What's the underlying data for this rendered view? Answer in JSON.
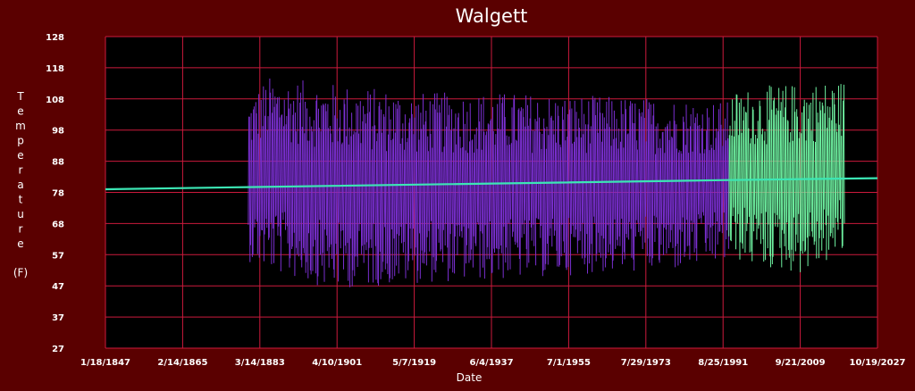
{
  "chart_data": {
    "type": "line",
    "title": "Walgett",
    "xlabel": "Date",
    "ylabel": "Temperature",
    "ylabel_unit": "(F)",
    "x_tick_labels": [
      "1/18/1847",
      "2/14/1865",
      "3/14/1883",
      "4/10/1901",
      "5/7/1919",
      "6/4/1937",
      "7/1/1955",
      "7/29/1973",
      "8/25/1991",
      "9/21/2009",
      "10/19/2027"
    ],
    "y_tick_labels": [
      "27",
      "37",
      "47",
      "57",
      "68",
      "78",
      "88",
      "98",
      "108",
      "118",
      "128"
    ],
    "xlim": [
      1847.05,
      2027.8
    ],
    "ylim": [
      27,
      128
    ],
    "grid": true,
    "series": [
      {
        "color": "#7a2fd0",
        "x_range": [
          1880.5,
          1993.0
        ],
        "envelope_high": [
          [
            1880.5,
            108
          ],
          [
            1885,
            115
          ],
          [
            1900,
            113
          ],
          [
            1920,
            110
          ],
          [
            1940,
            110
          ],
          [
            1960,
            109
          ],
          [
            1980,
            108
          ],
          [
            1993,
            107
          ]
        ],
        "envelope_low": [
          [
            1880.5,
            55
          ],
          [
            1885,
            52
          ],
          [
            1900,
            46
          ],
          [
            1920,
            48
          ],
          [
            1940,
            49
          ],
          [
            1960,
            51
          ],
          [
            1980,
            52
          ],
          [
            1993,
            55
          ]
        ]
      },
      {
        "color": "#6ef0a0",
        "x_range": [
          1993.0,
          2020.0
        ],
        "envelope_high": [
          [
            1993,
            110
          ],
          [
            2000,
            112
          ],
          [
            2010,
            113
          ],
          [
            2020,
            114
          ]
        ],
        "envelope_low": [
          [
            1993,
            56
          ],
          [
            2000,
            53
          ],
          [
            2010,
            51
          ],
          [
            2020,
            57
          ]
        ]
      },
      {
        "color": "#3ce6b4",
        "trend": [
          [
            1847.05,
            78.5
          ],
          [
            1880.5,
            79.2
          ],
          [
            1993,
            81.5
          ],
          [
            2027.8,
            82.1
          ]
        ]
      }
    ],
    "colors": {
      "background": "#5a0000",
      "plot_background": "#000000",
      "grid": "#cc1a3c"
    }
  }
}
